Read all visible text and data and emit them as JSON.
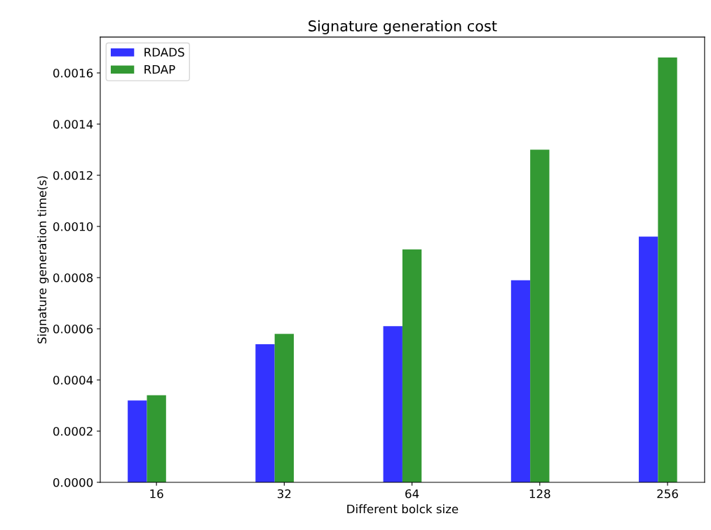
{
  "chart_data": {
    "type": "bar",
    "title": "Signature generation cost",
    "xlabel": "Different bolck size",
    "ylabel": "Signature generation time(s)",
    "categories": [
      "16",
      "32",
      "64",
      "128",
      "256"
    ],
    "series": [
      {
        "name": "RDADS",
        "color": "#3333ff",
        "values": [
          0.00032,
          0.00054,
          0.00061,
          0.00079,
          0.00096
        ]
      },
      {
        "name": "RDAP",
        "color": "#339933",
        "values": [
          0.00034,
          0.00058,
          0.00091,
          0.0013,
          0.00166
        ]
      }
    ],
    "ylim": [
      0,
      0.00174
    ],
    "yticks": [
      {
        "value": 0,
        "label": "0.0000"
      },
      {
        "value": 0.0002,
        "label": "0.0002"
      },
      {
        "value": 0.0004,
        "label": "0.0004"
      },
      {
        "value": 0.0006,
        "label": "0.0006"
      },
      {
        "value": 0.0008,
        "label": "0.0008"
      },
      {
        "value": 0.001,
        "label": "0.0010"
      },
      {
        "value": 0.0012,
        "label": "0.0012"
      },
      {
        "value": 0.0014,
        "label": "0.0014"
      },
      {
        "value": 0.0016,
        "label": "0.0016"
      }
    ],
    "legend": "top left",
    "grid": false
  }
}
